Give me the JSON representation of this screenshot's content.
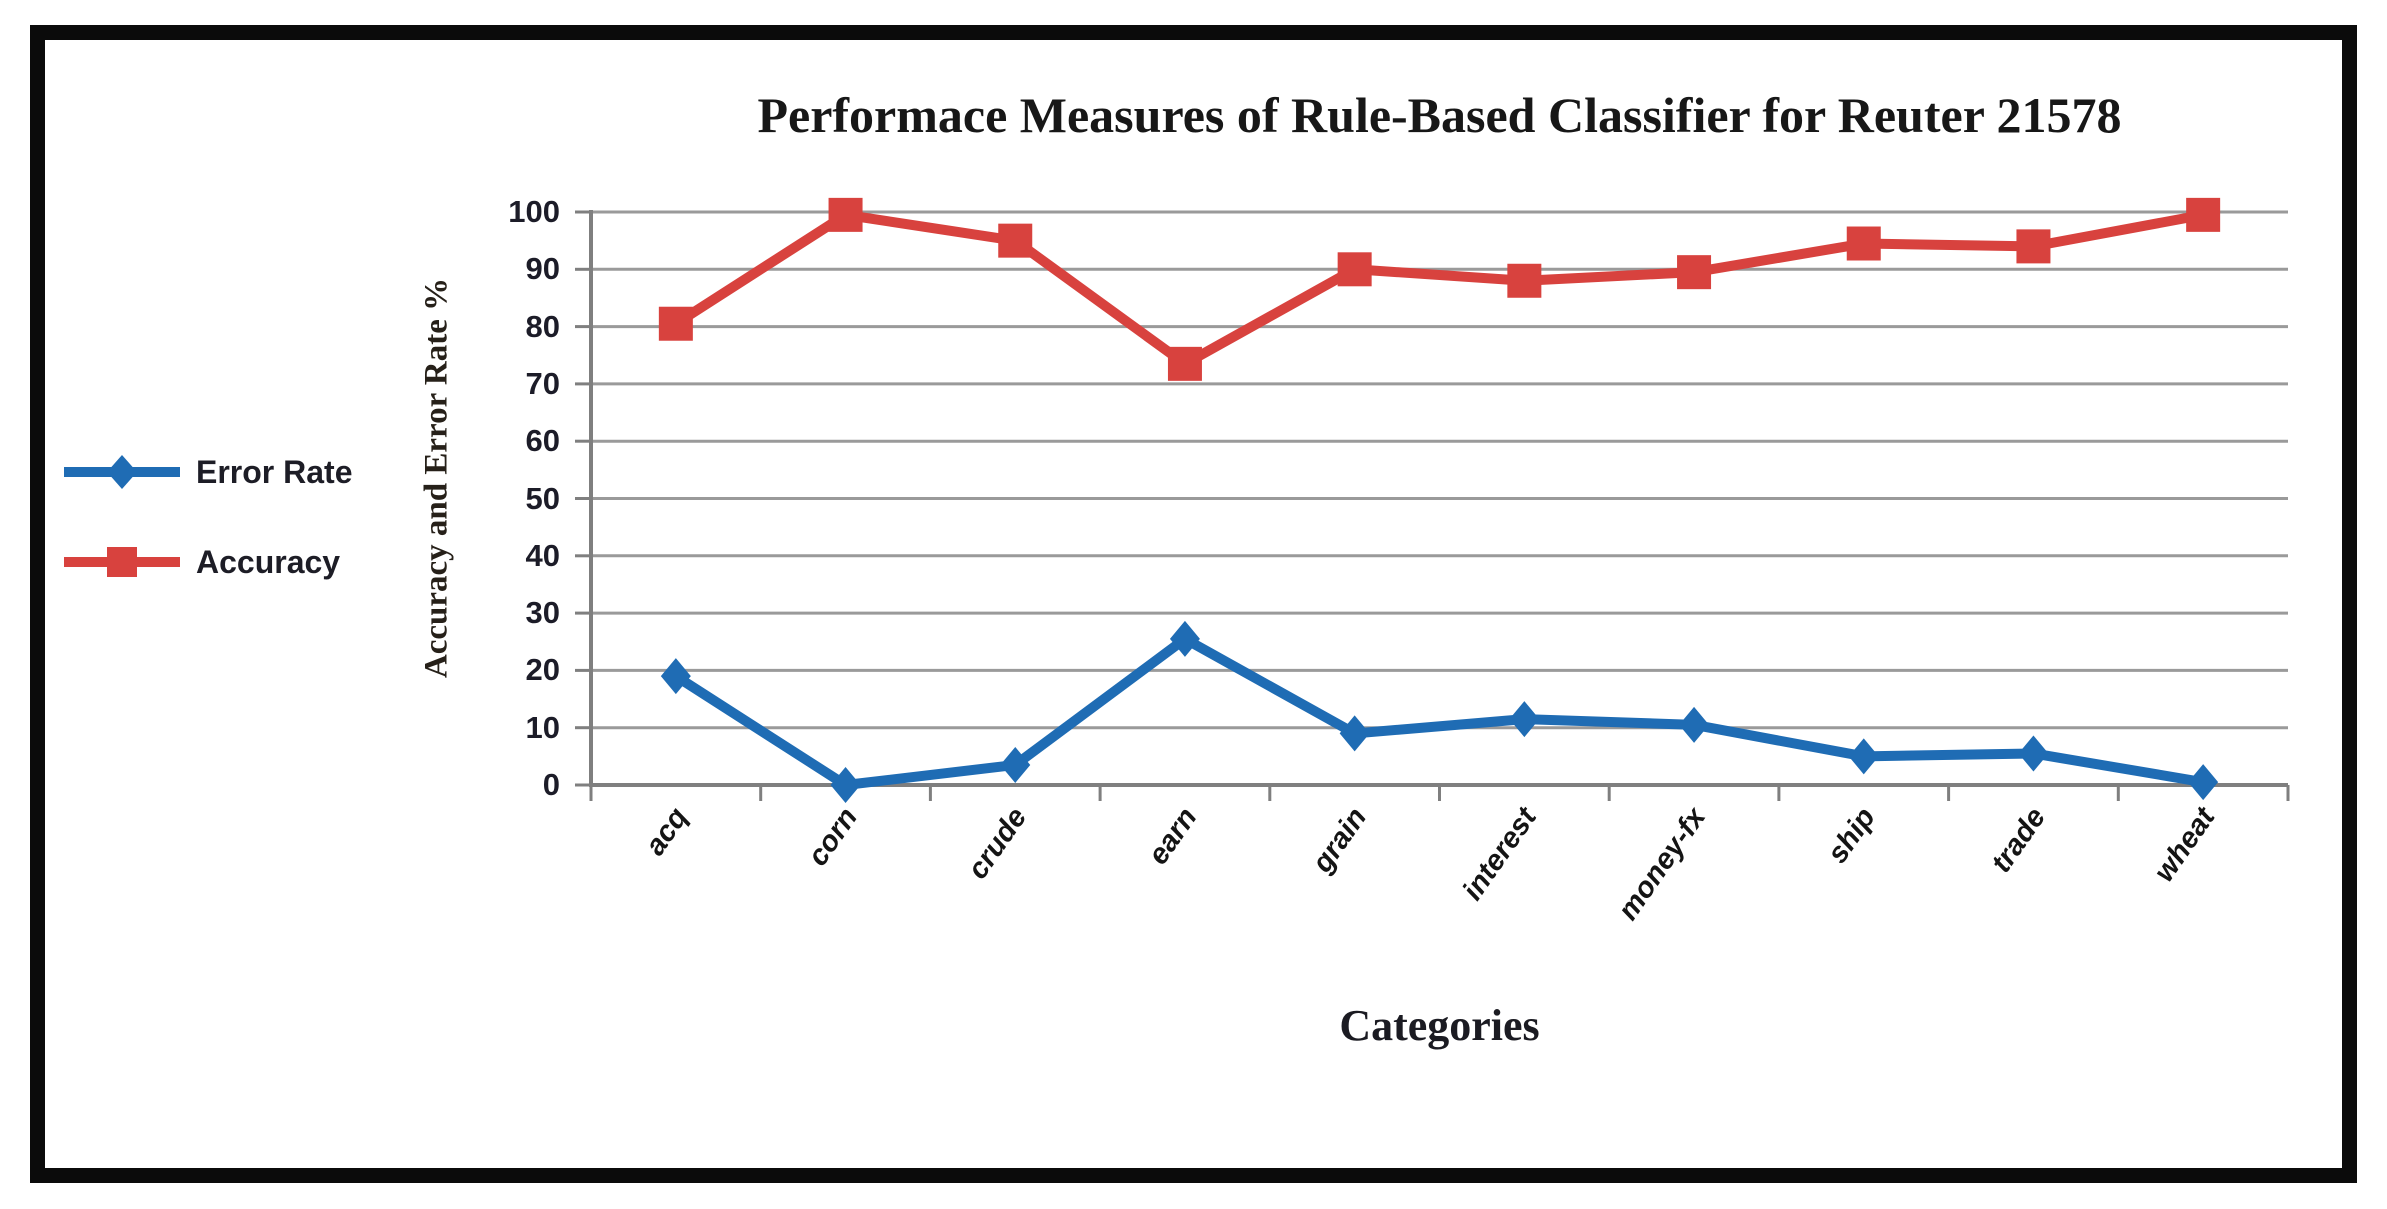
{
  "chart_data": {
    "type": "line",
    "title": "Performace Measures of Rule-Based Classifier for Reuter 21578",
    "xlabel": "Categories",
    "ylabel": "Accuracy and Error Rate %",
    "categories": [
      "acq",
      "corn",
      "crude",
      "earn",
      "grain",
      "interest",
      "money-fx",
      "ship",
      "trade",
      "wheat"
    ],
    "series": [
      {
        "name": "Error Rate",
        "marker": "diamond",
        "color": "#1f6cb4",
        "values": [
          19,
          0,
          3.5,
          25.5,
          9,
          11.5,
          10.5,
          5,
          5.5,
          0.5
        ]
      },
      {
        "name": "Accuracy",
        "marker": "square",
        "color": "#d8423e",
        "values": [
          80.5,
          99.5,
          95,
          73.5,
          90,
          88,
          89.5,
          94.5,
          94,
          99.5
        ]
      }
    ],
    "ylim": [
      0,
      100
    ],
    "ytick_step": 10,
    "yticks": [
      0,
      10,
      20,
      30,
      40,
      50,
      60,
      70,
      80,
      90,
      100
    ],
    "grid": true,
    "legend_position": "left-outside"
  },
  "style": {
    "grid_color": "#9a9a9a",
    "axis_color": "#7f7f7f",
    "frame_color": "#0b0b0b",
    "text_color": "#1c1c28",
    "error_rate_color": "#1f6cb4",
    "accuracy_color": "#d8423e"
  }
}
